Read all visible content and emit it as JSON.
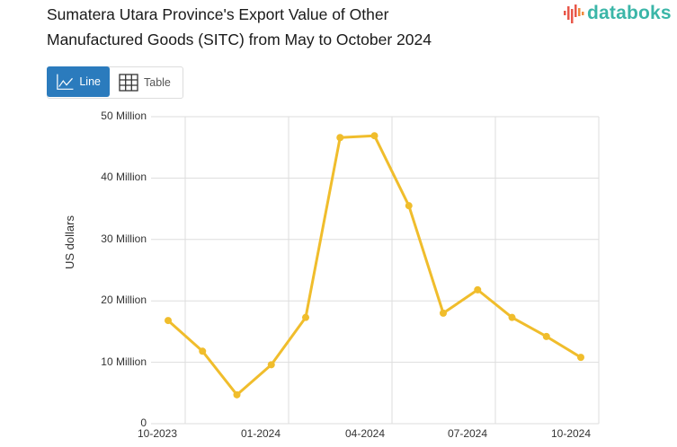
{
  "header": {
    "title_line1": "Sumatera Utara Province's Export Value of Other",
    "title_line2": "Manufactured Goods (SITC) from May to October 2024",
    "logo_text": "databoks"
  },
  "view_toggle": {
    "line_label": "Line",
    "table_label": "Table",
    "active": "Line"
  },
  "colors": {
    "line": "#f0bd2c",
    "active_button": "#2b7bbd",
    "grid": "#dddddd",
    "logo": "#3bb6a8"
  },
  "chart_data": {
    "type": "line",
    "title": "Sumatera Utara Province's Export Value of Other Manufactured Goods (SITC) from May to October 2024",
    "xlabel": "",
    "ylabel": "US dollars",
    "ylim": [
      0,
      50000000
    ],
    "yticks": [
      "0",
      "10 Million",
      "20 Million",
      "30 Million",
      "40 Million",
      "50 Million"
    ],
    "xticks": [
      "10-2023",
      "01-2024",
      "04-2024",
      "07-2024",
      "10-2024"
    ],
    "grid": true,
    "legend": "none",
    "x": [
      "10-2023",
      "11-2023",
      "12-2023",
      "01-2024",
      "02-2024",
      "03-2024",
      "04-2024",
      "05-2024",
      "06-2024",
      "07-2024",
      "08-2024",
      "09-2024",
      "10-2024"
    ],
    "series": [
      {
        "name": "Export Value",
        "values": [
          16800000,
          11800000,
          4700000,
          9600000,
          17300000,
          46600000,
          46900000,
          35500000,
          18000000,
          21800000,
          17300000,
          14200000,
          10800000
        ]
      }
    ]
  }
}
